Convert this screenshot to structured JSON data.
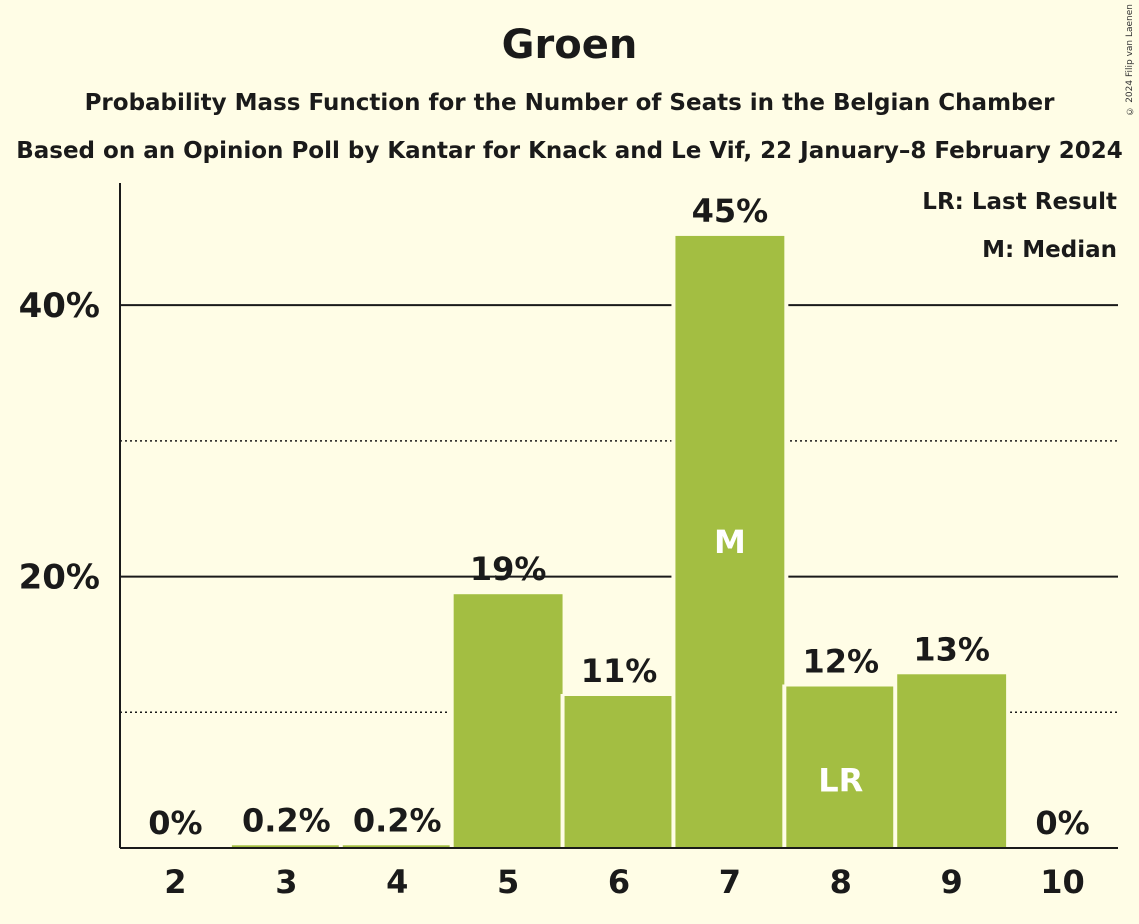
{
  "chart_data": {
    "type": "bar",
    "title": "Groen",
    "subtitle": "Probability Mass Function for the Number of Seats in the Belgian Chamber",
    "subtitle2": "Based on an Opinion Poll by Kantar for Knack and Le Vif, 22 January–8 February 2024",
    "copyright": "© 2024 Filip van Laenen",
    "categories": [
      "2",
      "3",
      "4",
      "5",
      "6",
      "7",
      "8",
      "9",
      "10"
    ],
    "values": [
      0,
      0.2,
      0.2,
      18.7,
      11.2,
      45.1,
      11.9,
      12.8,
      0
    ],
    "data_labels": [
      "0%",
      "0.2%",
      "0.2%",
      "19%",
      "11%",
      "45%",
      "12%",
      "13%",
      "0%"
    ],
    "ylim": [
      0,
      49
    ],
    "y_ticks": [
      20,
      40
    ],
    "y_tick_labels": [
      "20%",
      "40%"
    ],
    "minor_gridlines": [
      10,
      30
    ],
    "bar_markers": [
      {
        "category": "7",
        "label": "M"
      },
      {
        "category": "8",
        "label": "LR"
      }
    ],
    "legend": [
      "LR: Last Result",
      "M: Median"
    ],
    "legend_position": "top-right",
    "bar_color": "#A3BE42",
    "background_color": "#FFFDE6"
  }
}
